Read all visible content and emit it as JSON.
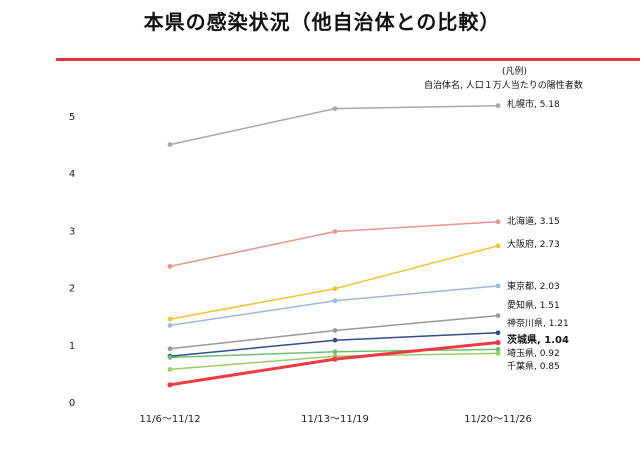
{
  "page": {
    "title": "本県の感染状況（他自治体との比較）"
  },
  "chart_data": {
    "type": "line",
    "legend_heading": "(凡例)",
    "legend_description": "自治体名, 人口１万人当たりの陽性者数",
    "x": [
      "11/6～11/12",
      "11/13～11/19",
      "11/20～11/26"
    ],
    "ylim": [
      0,
      5.5
    ],
    "yticks": [
      0,
      1,
      2,
      3,
      4,
      5
    ],
    "grid": false,
    "series": [
      {
        "name": "札幌市",
        "values": [
          4.5,
          5.13,
          5.18
        ],
        "color": "#a9a9a9",
        "label": "札幌市, 5.18"
      },
      {
        "name": "北海道",
        "values": [
          2.37,
          2.98,
          3.15
        ],
        "color": "#e8968c",
        "label": "北海道, 3.15"
      },
      {
        "name": "大阪府",
        "values": [
          1.45,
          1.98,
          2.73
        ],
        "color": "#f4c234",
        "label": "大阪府, 2.73"
      },
      {
        "name": "東京都",
        "values": [
          1.34,
          1.77,
          2.03
        ],
        "color": "#9fb8d9",
        "label": "東京都, 2.03"
      },
      {
        "name": "愛知県",
        "values": [
          0.93,
          1.25,
          1.51
        ],
        "color": "#999999",
        "label": "愛知県, 1.51"
      },
      {
        "name": "神奈川県",
        "values": [
          0.8,
          1.08,
          1.21
        ],
        "color": "#2f4f8f",
        "label": "神奈川県, 1.21"
      },
      {
        "name": "茨城県",
        "values": [
          0.3,
          0.75,
          1.04
        ],
        "color": "#ee3a43",
        "label": "茨城県, 1.04",
        "highlight": true
      },
      {
        "name": "埼玉県",
        "values": [
          0.78,
          0.88,
          0.92
        ],
        "color": "#6fbf73",
        "label": "埼玉県, 0.92"
      },
      {
        "name": "千葉県",
        "values": [
          0.57,
          0.8,
          0.85
        ],
        "color": "#9ccc65",
        "label": "千葉県, 0.85"
      }
    ]
  }
}
